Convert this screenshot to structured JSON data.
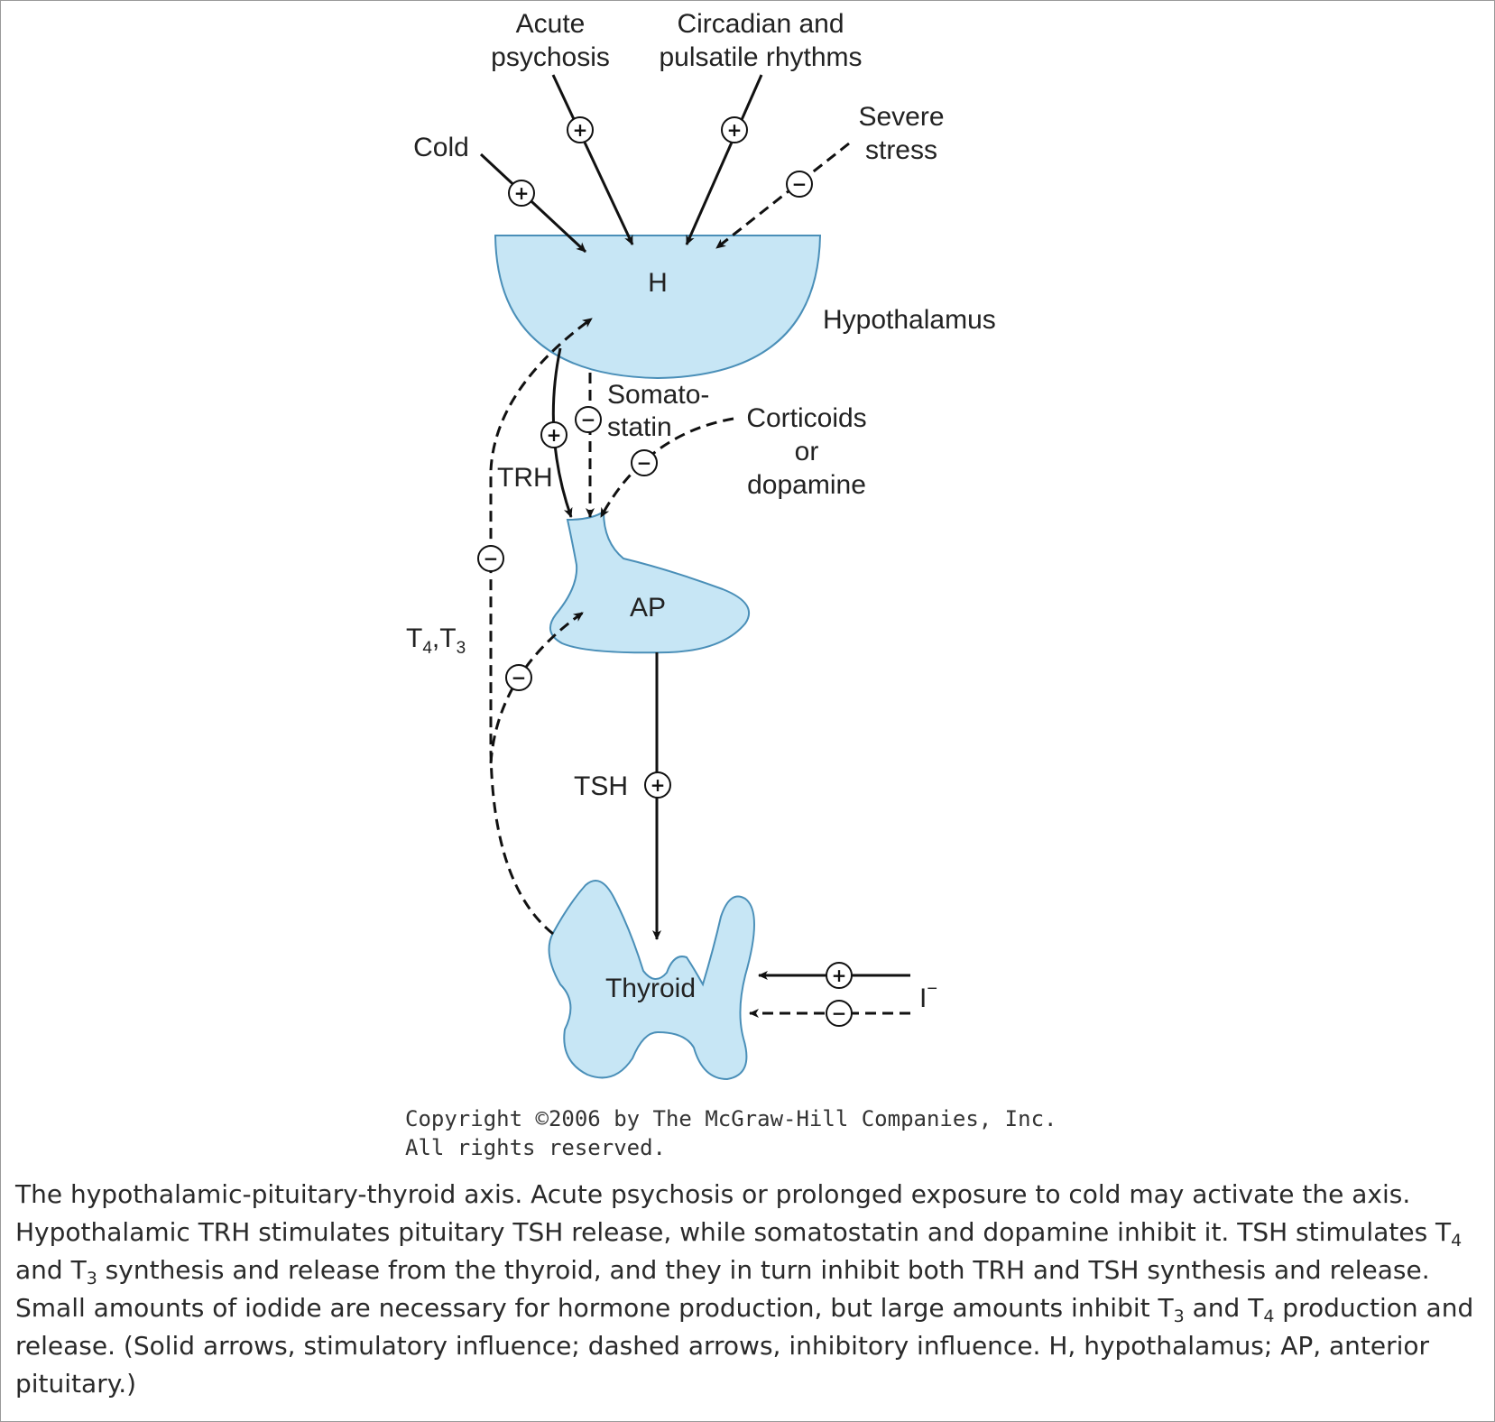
{
  "colors": {
    "organ_fill": "#c7e6f5",
    "organ_stroke": "#4a8fb8",
    "line": "#111111"
  },
  "labels": {
    "acute_psychosis_1": "Acute",
    "acute_psychosis_2": "psychosis",
    "circadian_1": "Circadian and",
    "circadian_2": "pulsatile rhythms",
    "severe_stress_1": "Severe",
    "severe_stress_2": "stress",
    "cold": "Cold",
    "h": "H",
    "hypothalamus": "Hypothalamus",
    "somatostatin_1": "Somato-",
    "somatostatin_2": "statin",
    "corticoids_1": "Corticoids",
    "corticoids_2": "or",
    "corticoids_3": "dopamine",
    "trh": "TRH",
    "t4t3_t": "T",
    "t4t3_4": "4",
    "t4t3_sep": ",T",
    "t4t3_3": "3",
    "ap": "AP",
    "tsh": "TSH",
    "thyroid": "Thyroid",
    "iodide": "I",
    "iodide_sup": "−",
    "plus": "+",
    "minus": "−"
  },
  "copyright": {
    "line1": "Copyright ©2006 by The McGraw-Hill Companies, Inc.",
    "line2": "All rights reserved."
  },
  "caption": {
    "part1": "The hypothalamic-pituitary-thyroid axis. Acute psychosis or prolonged exposure to cold may activate the axis. Hypothalamic TRH stimulates pituitary TSH release, while somatostatin and dopamine inhibit it. TSH stimulates T",
    "sub1": "4",
    "part2": " and T",
    "sub2": "3",
    "part3": " synthesis and release from the thyroid, and they in turn inhibit both TRH and TSH synthesis and release. Small amounts of iodide are necessary for hormone production, but large amounts inhibit T",
    "sub3": "3",
    "part4": " and T",
    "sub4": "4",
    "part5": " production and release. (Solid arrows, stimulatory influence; dashed arrows, inhibitory influence. H, hypothalamus; AP, anterior pituitary.)"
  }
}
